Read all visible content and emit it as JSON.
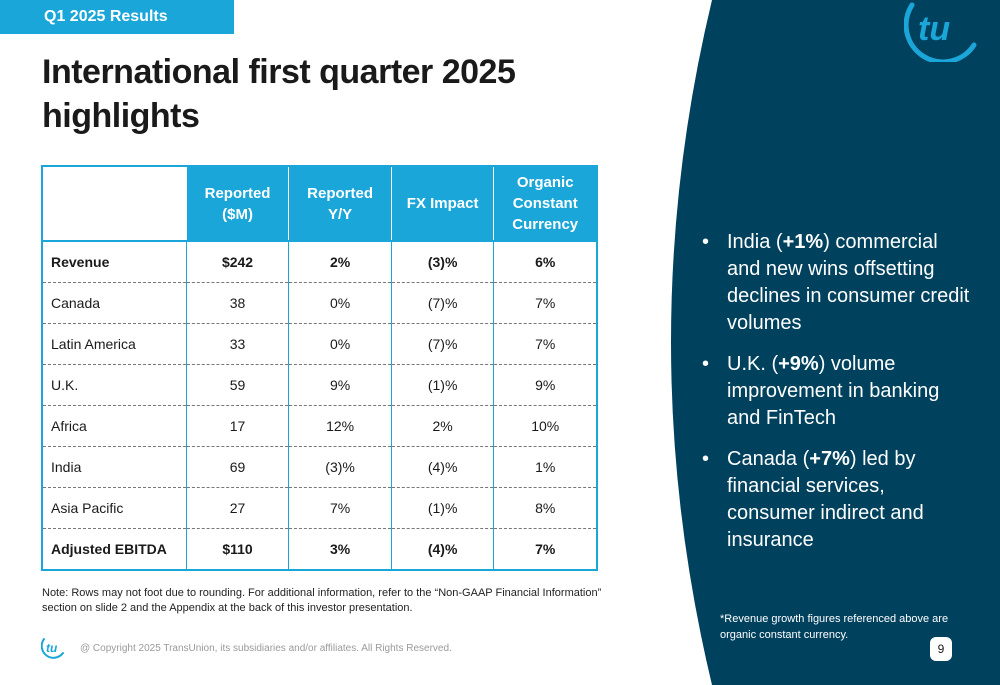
{
  "tag": "Q1 2025 Results",
  "title": "International first quarter 2025 highlights",
  "colors": {
    "accent": "#1aa6d9",
    "panel": "#00415e"
  },
  "table": {
    "headers": [
      "",
      "Reported ($M)",
      "Reported Y/Y",
      "FX Impact",
      "Organic Constant Currency"
    ],
    "rows": [
      {
        "label": "Revenue",
        "bold": true,
        "values": [
          "$242",
          "2%",
          "(3)%",
          "6%"
        ]
      },
      {
        "label": "Canada",
        "bold": false,
        "values": [
          "38",
          "0%",
          "(7)%",
          "7%"
        ]
      },
      {
        "label": "Latin America",
        "bold": false,
        "values": [
          "33",
          "0%",
          "(7)%",
          "7%"
        ]
      },
      {
        "label": "U.K.",
        "bold": false,
        "values": [
          "59",
          "9%",
          "(1)%",
          "9%"
        ]
      },
      {
        "label": "Africa",
        "bold": false,
        "values": [
          "17",
          "12%",
          "2%",
          "10%"
        ]
      },
      {
        "label": "India",
        "bold": false,
        "values": [
          "69",
          "(3)%",
          "(4)%",
          "1%"
        ]
      },
      {
        "label": "Asia Pacific",
        "bold": false,
        "values": [
          "27",
          "7%",
          "(1)%",
          "8%"
        ]
      },
      {
        "label": "Adjusted EBITDA",
        "bold": true,
        "values": [
          "$110",
          "3%",
          "(4)%",
          "7%"
        ]
      }
    ]
  },
  "bullets": [
    {
      "pre": "India (",
      "bold": "+1%",
      "post": ") commercial and new wins offsetting declines in consumer credit volumes"
    },
    {
      "pre": "U.K. (",
      "bold": "+9%",
      "post": ") volume improvement in banking and FinTech"
    },
    {
      "pre": "Canada (",
      "bold": "+7%",
      "post": ") led by financial services, consumer indirect and insurance"
    }
  ],
  "bullet_symbol": "•",
  "note": "Note: Rows may not foot due to rounding. For additional information, refer to the “Non-GAAP Financial Information” section on slide 2 and the Appendix at the back of this investor presentation.",
  "footnote": "*Revenue growth figures referenced above are organic constant currency.",
  "copyright": "@ Copyright 2025 TransUnion, its subsidiaries and/or affiliates.  All Rights Reserved.",
  "page_number": "9",
  "logo_text": "tu"
}
